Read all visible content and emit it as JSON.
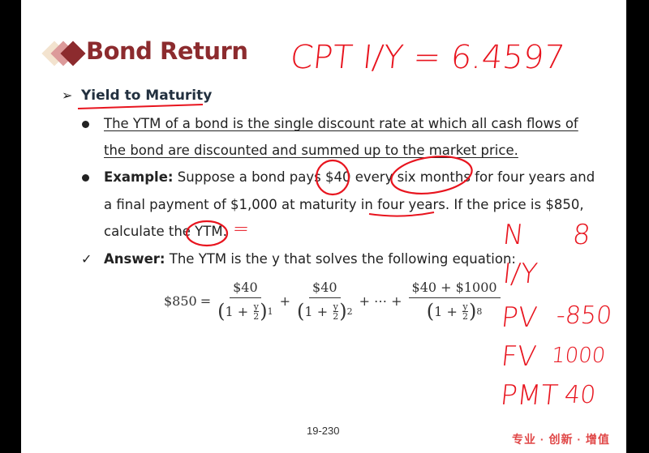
{
  "slide": {
    "title": "Bond Return",
    "section": "Yield to Maturity",
    "definition_line1": "The YTM of a bond is the single discount rate at which all cash flows of",
    "definition_line2": "the bond are discounted and summed up to the market price.",
    "example_label": "Example:",
    "example_line1": " Suppose a bond pays $40 every six months for four years and",
    "example_line2": "a final payment of $1,000 at maturity in four years. If the price is $850,",
    "example_line3": "calculate the YTM.",
    "answer_label": "Answer:",
    "answer_text": " The YTM is the y that solves the following equation:",
    "equation": {
      "lhs": "$850",
      "eq": "=",
      "term1_num": "$40",
      "term1_exp": "1",
      "term2_num": "$40",
      "term2_exp": "2",
      "ellipsis": "+ ⋯ +",
      "term3_num": "$40 + $1000",
      "term3_exp": "8",
      "base_one": "1 +",
      "y": "y",
      "two": "2"
    },
    "page_number": "19-230",
    "logo_text": "专业 · 创新 · 增值",
    "title_color": "#8c2b2e",
    "logo_colors": [
      "#f3e3cf",
      "#dc9a9a",
      "#8c2b2e"
    ]
  },
  "annotations": {
    "color": "#e8141e",
    "top": "CPT   I/Y = 6.4597",
    "equals_mark": "=",
    "n_label": "N",
    "n_value": "8",
    "iy_label": "I/Y",
    "pv_label": "PV",
    "pv_value": "-850",
    "fv_label": "FV",
    "fv_value": "1000",
    "pmt_label": "PMT",
    "pmt_value": "40"
  }
}
